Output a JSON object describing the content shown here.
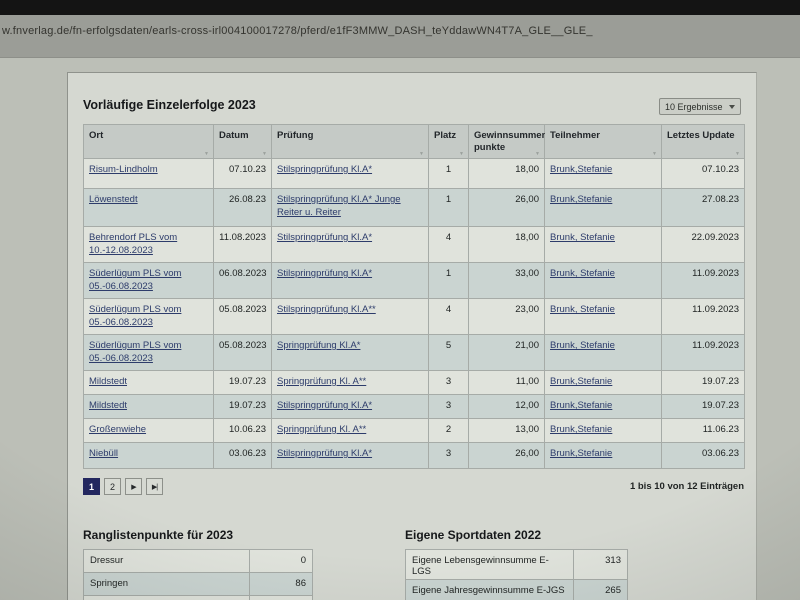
{
  "browser": {
    "url": "w.fnverlag.de/fn-erfolgsdaten/earls-cross-irl004100017278/pferd/e1fF3MMW_DASH_teYddawWN4T7A_GLE__GLE_"
  },
  "icons": {
    "sort": "▼",
    "chevron_down": "▾",
    "next": "▶",
    "last": "▶|"
  },
  "results": {
    "title": "Vorläufige Einzelerfolge 2023",
    "results_select": "10 Ergebnisse",
    "columns": [
      "Ort",
      "Datum",
      "Prüfung",
      "Platz",
      "Gewinnsummen-punkte",
      "Teilnehmer",
      "Letztes Update"
    ],
    "rows": [
      {
        "ort": "Risum-Lindholm",
        "datum": "07.10.23",
        "pruefung": "Stilspringprüfung Kl.A*",
        "platz": "1",
        "punkte": "18,00",
        "teilnehmer": "Brunk,Stefanie",
        "update": "07.10.23"
      },
      {
        "ort": "Löwenstedt",
        "datum": "26.08.23",
        "pruefung": "Stilspringprüfung Kl.A* Junge Reiter u. Reiter",
        "platz": "1",
        "punkte": "26,00",
        "teilnehmer": "Brunk,Stefanie",
        "update": "27.08.23"
      },
      {
        "ort": "Behrendorf PLS vom 10.-12.08.2023",
        "datum": "11.08.2023",
        "pruefung": "Stilspringprüfung Kl.A*",
        "platz": "4",
        "punkte": "18,00",
        "teilnehmer": "Brunk, Stefanie",
        "update": "22.09.2023"
      },
      {
        "ort": "Süderlügum PLS vom 05.-06.08.2023",
        "datum": "06.08.2023",
        "pruefung": "Stilspringprüfung Kl.A*",
        "platz": "1",
        "punkte": "33,00",
        "teilnehmer": "Brunk, Stefanie",
        "update": "11.09.2023"
      },
      {
        "ort": "Süderlügum PLS vom 05.-06.08.2023",
        "datum": "05.08.2023",
        "pruefung": "Stilspringprüfung Kl.A**",
        "platz": "4",
        "punkte": "23,00",
        "teilnehmer": "Brunk, Stefanie",
        "update": "11.09.2023"
      },
      {
        "ort": "Süderlügum PLS vom 05.-06.08.2023",
        "datum": "05.08.2023",
        "pruefung": "Springprüfung Kl.A*",
        "platz": "5",
        "punkte": "21,00",
        "teilnehmer": "Brunk, Stefanie",
        "update": "11.09.2023"
      },
      {
        "ort": "Mildstedt",
        "datum": "19.07.23",
        "pruefung": "Springprüfung Kl. A**",
        "platz": "3",
        "punkte": "11,00",
        "teilnehmer": "Brunk,Stefanie",
        "update": "19.07.23"
      },
      {
        "ort": "Mildstedt",
        "datum": "19.07.23",
        "pruefung": "Stilspringprüfung Kl.A*",
        "platz": "3",
        "punkte": "12,00",
        "teilnehmer": "Brunk,Stefanie",
        "update": "19.07.23"
      },
      {
        "ort": "Großenwiehe",
        "datum": "10.06.23",
        "pruefung": "Springprüfung Kl. A**",
        "platz": "2",
        "punkte": "13,00",
        "teilnehmer": "Brunk,Stefanie",
        "update": "11.06.23"
      },
      {
        "ort": "Niebüll",
        "datum": "03.06.23",
        "pruefung": "Stilspringprüfung Kl.A*",
        "platz": "3",
        "punkte": "26,00",
        "teilnehmer": "Brunk,Stefanie",
        "update": "03.06.23"
      }
    ],
    "pagination": {
      "page1": "1",
      "page2": "2",
      "info": "1 bis 10 von 12 Einträgen"
    }
  },
  "ranglisten": {
    "title": "Ranglistenpunkte für 2023",
    "rows": [
      {
        "label": "Dressur",
        "value": "0"
      },
      {
        "label": "Springen",
        "value": "86"
      }
    ]
  },
  "sportdaten": {
    "title": "Eigene Sportdaten 2022",
    "rows": [
      {
        "label": "Eigene Lebensgewinnsumme E-LGS",
        "value": "313"
      },
      {
        "label": "Eigene Jahresgewinnsumme E-JGS",
        "value": "265"
      }
    ]
  }
}
